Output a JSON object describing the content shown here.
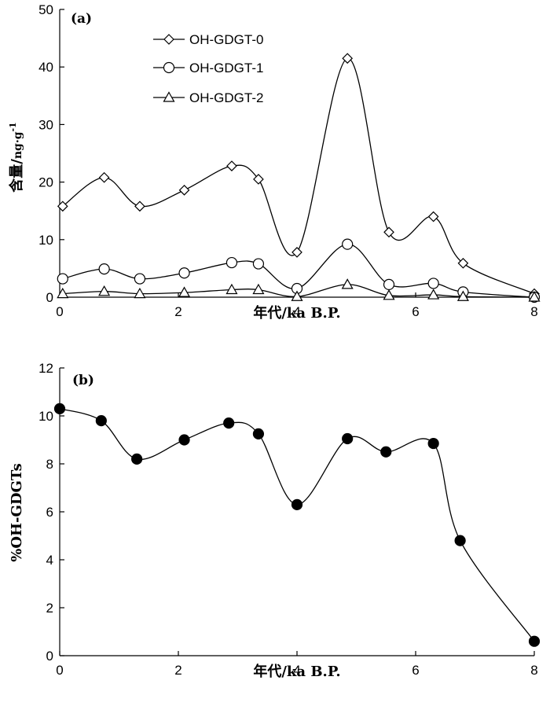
{
  "chart_data": [
    {
      "type": "line",
      "panel_label": "(a)",
      "xlabel": "年代/ka B.P.",
      "ylabel": "含量/ng·g⁻¹",
      "ylabel_main": "含量/",
      "ylabel_unit": "ng·g",
      "ylabel_exp": "-1",
      "xlim": [
        0,
        8
      ],
      "ylim": [
        0,
        50
      ],
      "xticks": [
        0,
        2,
        4,
        6,
        8
      ],
      "yticks": [
        0,
        10,
        20,
        30,
        40,
        50
      ],
      "legend_position": "top-center",
      "series": [
        {
          "name": "OH-GDGT-0",
          "marker": "diamond",
          "x": [
            0.05,
            0.75,
            1.35,
            2.1,
            2.9,
            3.35,
            4.0,
            4.85,
            5.55,
            6.3,
            6.8,
            8.0
          ],
          "values": [
            15.8,
            20.8,
            15.8,
            18.6,
            22.8,
            20.5,
            7.8,
            41.5,
            11.3,
            14.0,
            5.9,
            0.6
          ]
        },
        {
          "name": "OH-GDGT-1",
          "marker": "circle",
          "x": [
            0.05,
            0.75,
            1.35,
            2.1,
            2.9,
            3.35,
            4.0,
            4.85,
            5.55,
            6.3,
            6.8,
            8.0
          ],
          "values": [
            3.2,
            4.9,
            3.2,
            4.2,
            6.0,
            5.8,
            1.5,
            9.2,
            2.2,
            2.4,
            0.9,
            0.0
          ]
        },
        {
          "name": "OH-GDGT-2",
          "marker": "triangle",
          "x": [
            0.05,
            0.75,
            1.35,
            2.1,
            2.9,
            3.35,
            4.0,
            4.85,
            5.55,
            6.3,
            6.8,
            8.0
          ],
          "values": [
            0.6,
            1.0,
            0.6,
            0.8,
            1.3,
            1.3,
            0.1,
            2.2,
            0.3,
            0.4,
            0.1,
            0.0
          ]
        }
      ]
    },
    {
      "type": "line",
      "panel_label": "(b)",
      "xlabel": "年代/ka B.P.",
      "ylabel": "%OH-GDGTs",
      "xlim": [
        0,
        8
      ],
      "ylim": [
        0,
        12
      ],
      "xticks": [
        0,
        2,
        4,
        6,
        8
      ],
      "yticks": [
        0,
        2,
        4,
        6,
        8,
        10,
        12
      ],
      "series": [
        {
          "name": "%OH-GDGTs",
          "marker": "filled-circle",
          "x": [
            0.0,
            0.7,
            1.3,
            2.1,
            2.85,
            3.35,
            4.0,
            4.85,
            5.5,
            6.3,
            6.75,
            8.0
          ],
          "values": [
            10.3,
            9.8,
            8.2,
            9.0,
            9.7,
            9.25,
            6.3,
            9.05,
            8.5,
            8.85,
            4.8,
            0.6
          ]
        }
      ]
    }
  ]
}
